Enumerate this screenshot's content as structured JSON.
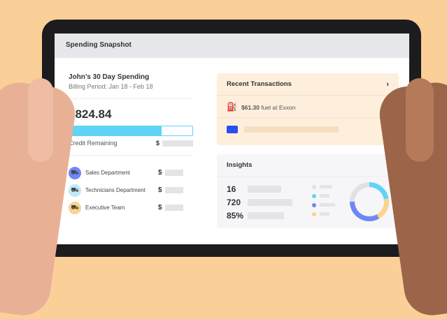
{
  "header": {
    "title": "Spending Snapshot"
  },
  "summary": {
    "name": "John’s 30 Day Spending",
    "period": "Billing Period: Jan 18 - Feb 18",
    "amount": "$824.84",
    "credit_label": "Credit Remaining",
    "currency": "$",
    "credit_used_fraction": 0.75
  },
  "departments": [
    {
      "label": "Sales Department",
      "color": "#6d87f5",
      "icon": "truck-icon"
    },
    {
      "label": "Technicians Department",
      "color": "#bfe9f7",
      "icon": "truck-icon"
    },
    {
      "label": "Executive Team",
      "color": "#fbd38d",
      "icon": "truck-icon"
    }
  ],
  "transactions": {
    "title": "Recent Transactions",
    "items": [
      {
        "amount": "$61.30",
        "desc": " fuel at Exxon",
        "icon": "fuel-pump-icon"
      },
      {
        "icon": "card-icon"
      }
    ]
  },
  "insights": {
    "title": "Insights",
    "stats": [
      "16",
      "720",
      "85%"
    ],
    "legend_colors": [
      "#e1e1e1",
      "#5fd4f7",
      "#6d87f5",
      "#fbd38d"
    ]
  },
  "colors": {
    "background": "#fbcf98",
    "accent": "#5fd4f7"
  }
}
